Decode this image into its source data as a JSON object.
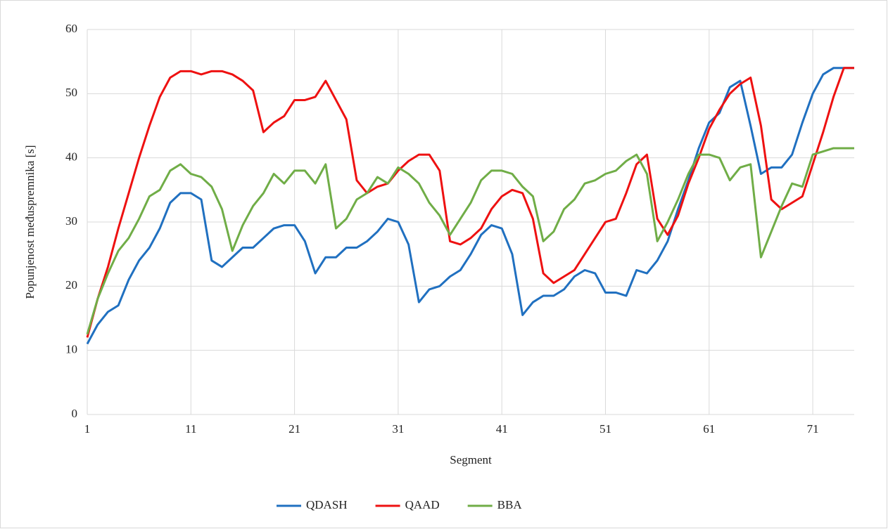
{
  "chart_data": {
    "type": "line",
    "xlabel": "Segment",
    "ylabel": "Popunjenost međuspremnika [s]",
    "x": [
      1,
      2,
      3,
      4,
      5,
      6,
      7,
      8,
      9,
      10,
      11,
      12,
      13,
      14,
      15,
      16,
      17,
      18,
      19,
      20,
      21,
      22,
      23,
      24,
      25,
      26,
      27,
      28,
      29,
      30,
      31,
      32,
      33,
      34,
      35,
      36,
      37,
      38,
      39,
      40,
      41,
      42,
      43,
      44,
      45,
      46,
      47,
      48,
      49,
      50,
      51,
      52,
      53,
      54,
      55,
      56,
      57,
      58,
      59,
      60,
      61,
      62,
      63,
      64,
      65,
      66,
      67,
      68,
      69,
      70,
      71,
      72,
      73,
      74,
      75
    ],
    "xlim": [
      1,
      75
    ],
    "xticks": [
      1,
      11,
      21,
      31,
      41,
      51,
      61,
      71
    ],
    "ylim": [
      0,
      60
    ],
    "yticks": [
      0,
      10,
      20,
      30,
      40,
      50,
      60
    ],
    "grid": true,
    "legend": "bottom",
    "series": [
      {
        "name": "QDASH",
        "color": "#2070c0",
        "values": [
          11,
          14,
          16,
          17,
          21,
          24,
          26,
          29,
          33,
          34.5,
          34.5,
          33.5,
          24,
          23,
          24.5,
          26,
          26,
          27.5,
          29,
          29.5,
          29.5,
          27,
          22,
          24.5,
          24.5,
          26,
          26,
          27,
          28.5,
          30.5,
          30,
          26.5,
          17.5,
          19.5,
          20,
          21.5,
          22.5,
          25,
          28,
          29.5,
          29,
          25,
          15.5,
          17.5,
          18.5,
          18.5,
          19.5,
          21.5,
          22.5,
          22,
          19,
          19,
          18.5,
          22.5,
          22,
          24,
          27,
          32,
          36.5,
          41.5,
          45.5,
          47,
          51,
          52,
          45,
          37.5,
          38.5,
          38.5,
          40.5,
          45.5,
          50,
          53,
          54,
          54,
          54
        ]
      },
      {
        "name": "QAAD",
        "color": "#ee1111",
        "values": [
          12,
          18,
          23,
          29,
          34.5,
          40,
          45,
          49.5,
          52.5,
          53.5,
          53.5,
          53,
          53.5,
          53.5,
          53,
          52,
          50.5,
          44,
          45.5,
          46.5,
          49,
          49,
          49.5,
          52,
          49,
          46,
          36.5,
          34.5,
          35.5,
          36,
          38,
          39.5,
          40.5,
          40.5,
          38,
          27,
          26.5,
          27.5,
          29,
          32,
          34,
          35,
          34.5,
          30.5,
          22,
          20.5,
          21.5,
          22.5,
          25,
          27.5,
          30,
          30.5,
          34.5,
          39,
          40.5,
          30.5,
          28,
          31,
          36,
          40,
          44.5,
          47.5,
          50,
          51.5,
          52.5,
          45,
          33.5,
          32,
          33,
          34,
          39,
          44,
          49.5,
          54,
          54
        ]
      },
      {
        "name": "BBA",
        "color": "#70ad47",
        "values": [
          12.5,
          18,
          22,
          25.5,
          27.5,
          30.5,
          34,
          35,
          38,
          39,
          37.5,
          37,
          35.5,
          32,
          25.5,
          29.5,
          32.5,
          34.5,
          37.5,
          36,
          38,
          38,
          36,
          39,
          29,
          30.5,
          33.5,
          34.5,
          37,
          36,
          38.5,
          37.5,
          36,
          33,
          31,
          28,
          30.5,
          33,
          36.5,
          38,
          38,
          37.5,
          35.5,
          34,
          27,
          28.5,
          32,
          33.5,
          36,
          36.5,
          37.5,
          38,
          39.5,
          40.5,
          37.5,
          27,
          30,
          33.5,
          37.5,
          40.5,
          40.5,
          40,
          36.5,
          38.5,
          39,
          24.5,
          28.5,
          32.5,
          36,
          35.5,
          40.5,
          41,
          41.5,
          41.5,
          41.5
        ]
      }
    ]
  }
}
